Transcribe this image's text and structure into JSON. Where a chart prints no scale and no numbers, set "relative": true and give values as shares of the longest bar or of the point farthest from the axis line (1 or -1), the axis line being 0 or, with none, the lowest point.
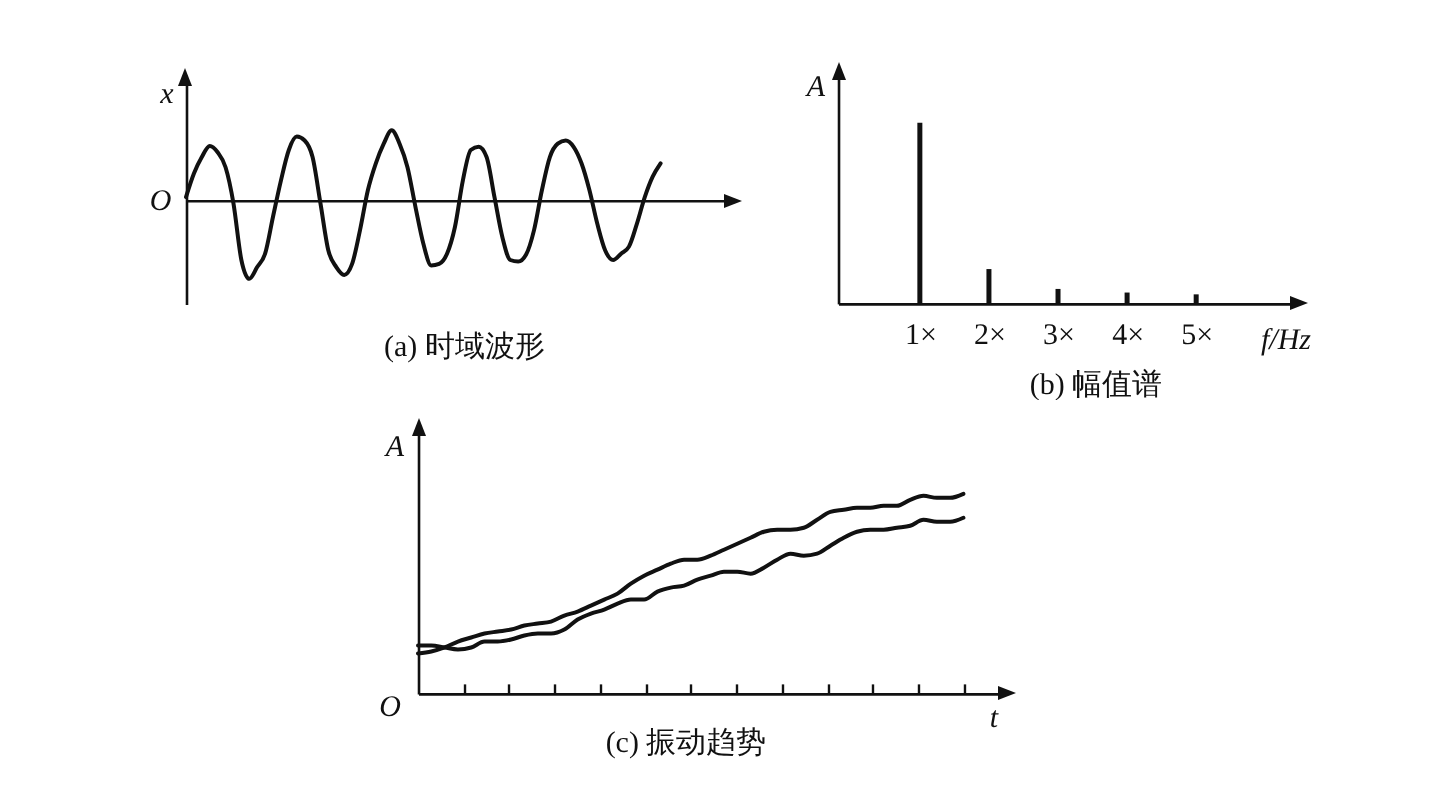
{
  "chart_data": [
    {
      "type": "line",
      "title": "(a) 时域波形",
      "ylabel": "x",
      "annotations": [
        "O"
      ],
      "relative": true,
      "color": "#111111",
      "categories": [
        null,
        null,
        null,
        null,
        null,
        null,
        null,
        null,
        null,
        null,
        null,
        null,
        null,
        null,
        null,
        null,
        null,
        null,
        null,
        null,
        null,
        null,
        null,
        null,
        null,
        null,
        null,
        null,
        null,
        null,
        null,
        null,
        null,
        null,
        null,
        null,
        null,
        null,
        null,
        null,
        null,
        null,
        null,
        null,
        null,
        null,
        null,
        null,
        null,
        null,
        null,
        null,
        null,
        null,
        null,
        null,
        null,
        null,
        null,
        null,
        null
      ],
      "values": [
        0.04,
        0.34,
        0.55,
        0.69,
        0.61,
        0.42,
        -0.04,
        -0.76,
        -1,
        -0.85,
        -0.68,
        -0.21,
        0.25,
        0.64,
        0.81,
        0.76,
        0.55,
        -0.04,
        -0.64,
        -0.85,
        -0.95,
        -0.81,
        -0.38,
        0.13,
        0.47,
        0.72,
        0.89,
        0.72,
        0.42,
        -0.08,
        -0.55,
        -0.83,
        -0.81,
        -0.68,
        -0.34,
        0.25,
        0.64,
        0.68,
        0.55,
        0.04,
        -0.47,
        -0.76,
        -0.78,
        -0.69,
        -0.38,
        0.13,
        0.55,
        0.72,
        0.76,
        0.68,
        0.47,
        0.13,
        -0.3,
        -0.64,
        -0.76,
        -0.68,
        -0.59,
        -0.3,
        0.04,
        0.3,
        0.47
      ]
    },
    {
      "type": "bar",
      "title": "(b) 幅值谱",
      "xlabel": "f/Hz",
      "ylabel": "A",
      "relative": true,
      "color": "#111111",
      "categories": [
        "1×",
        "2×",
        "3×",
        "4×",
        "5×"
      ],
      "values": [
        1,
        0.19,
        0.08,
        0.06,
        0.05
      ]
    },
    {
      "type": "line",
      "title": "(c) 振动趋势",
      "xlabel": "t",
      "ylabel": "A",
      "annotations": [
        "O"
      ],
      "relative": true,
      "categories": [
        null,
        null,
        null,
        null,
        null,
        null,
        null,
        null,
        null,
        null,
        null,
        null,
        null,
        null,
        null,
        null,
        null,
        null,
        null,
        null,
        null,
        null,
        null,
        null,
        null,
        null,
        null,
        null,
        null,
        null,
        null,
        null,
        null,
        null,
        null,
        null,
        null,
        null,
        null,
        null,
        null,
        null
      ],
      "series": [
        {
          "color": "#111111",
          "values": [
            0.2,
            0.21,
            0.23,
            0.26,
            0.28,
            0.3,
            0.31,
            0.32,
            0.34,
            0.35,
            0.36,
            0.39,
            0.41,
            0.44,
            0.47,
            0.5,
            0.55,
            0.59,
            0.62,
            0.65,
            0.67,
            0.67,
            0.69,
            0.72,
            0.75,
            0.78,
            0.81,
            0.82,
            0.82,
            0.83,
            0.87,
            0.91,
            0.92,
            0.93,
            0.93,
            0.94,
            0.94,
            0.97,
            0.99,
            0.98,
            0.98,
            1
          ]
        },
        {
          "color": "#111111",
          "values": [
            0.24,
            0.24,
            0.23,
            0.22,
            0.23,
            0.26,
            0.26,
            0.27,
            0.29,
            0.3,
            0.3,
            0.32,
            0.37,
            0.4,
            0.42,
            0.45,
            0.47,
            0.47,
            0.51,
            0.53,
            0.54,
            0.57,
            0.59,
            0.61,
            0.61,
            0.6,
            0.63,
            0.67,
            0.7,
            0.69,
            0.7,
            0.74,
            0.78,
            0.81,
            0.82,
            0.82,
            0.83,
            0.84,
            0.87,
            0.86,
            0.86,
            0.88
          ]
        }
      ]
    }
  ]
}
